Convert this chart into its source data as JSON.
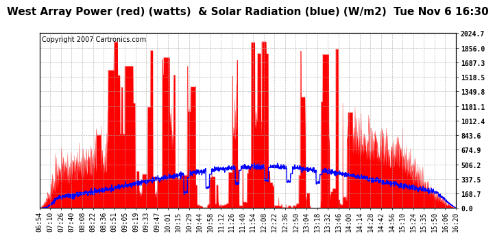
{
  "title": "West Array Power (red) (watts)  & Solar Radiation (blue) (W/m2)  Tue Nov 6 16:30",
  "copyright_text": "Copyright 2007 Cartronics.com",
  "background_color": "#ffffff",
  "plot_bg_color": "#ffffff",
  "grid_color": "#aaaaaa",
  "y_ticks": [
    0.0,
    168.7,
    337.5,
    506.2,
    674.9,
    843.6,
    1012.4,
    1181.1,
    1349.8,
    1518.5,
    1687.3,
    1856.0,
    2024.7
  ],
  "y_max": 2024.7,
  "x_labels": [
    "06:54",
    "07:10",
    "07:26",
    "07:40",
    "08:08",
    "08:22",
    "08:36",
    "08:51",
    "09:05",
    "09:19",
    "09:33",
    "09:47",
    "10:01",
    "10:15",
    "10:29",
    "10:44",
    "10:58",
    "11:12",
    "11:26",
    "11:40",
    "11:54",
    "12:08",
    "12:22",
    "12:36",
    "12:50",
    "13:04",
    "13:18",
    "13:32",
    "13:46",
    "14:00",
    "14:14",
    "14:28",
    "14:42",
    "14:56",
    "15:10",
    "15:24",
    "15:35",
    "15:50",
    "16:06",
    "16:20"
  ],
  "red_color": "#ff0000",
  "blue_color": "#0000ff",
  "title_fontsize": 11,
  "tick_fontsize": 7,
  "copyright_fontsize": 7
}
